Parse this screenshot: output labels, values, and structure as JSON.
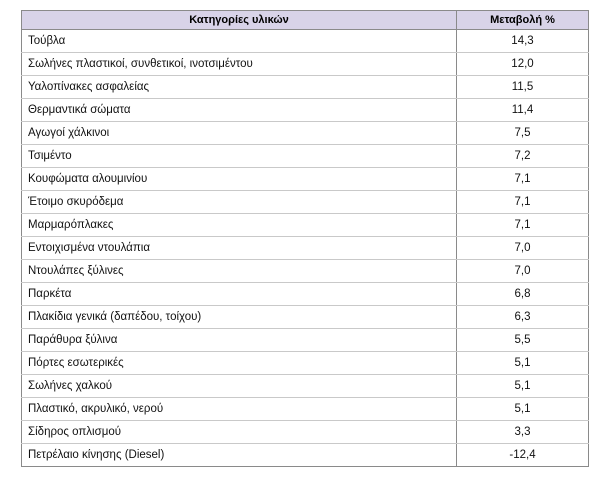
{
  "table": {
    "headers": [
      "Κατηγορίες υλικών",
      "Μεταβολή %"
    ],
    "rows": [
      [
        "Τούβλα",
        "14,3"
      ],
      [
        "Σωλήνες πλαστικοί, συνθετικοί, ινοτσιμέντου",
        "12,0"
      ],
      [
        "Υαλοπίνακες ασφαλείας",
        "11,5"
      ],
      [
        "Θερμαντικά σώματα",
        "11,4"
      ],
      [
        "Αγωγοί χάλκινοι",
        "7,5"
      ],
      [
        "Τσιμέντο",
        "7,2"
      ],
      [
        "Κουφώματα αλουμινίου",
        "7,1"
      ],
      [
        "Έτοιμο σκυρόδεμα",
        "7,1"
      ],
      [
        "Μαρμαρόπλακες",
        "7,1"
      ],
      [
        "Εντοιχισμένα ντουλάπια",
        "7,0"
      ],
      [
        "Ντουλάπες ξύλινες",
        "7,0"
      ],
      [
        "Παρκέτα",
        "6,8"
      ],
      [
        "Πλακίδια γενικά (δαπέδου, τοίχου)",
        "6,3"
      ],
      [
        "Παράθυρα ξύλινα",
        "5,5"
      ],
      [
        "Πόρτες εσωτερικές",
        "5,1"
      ],
      [
        "Σωλήνες χαλκού",
        "5,1"
      ],
      [
        "Πλαστικό, ακρυλικό, νερού",
        "5,1"
      ],
      [
        "Σίδηρος οπλισμού",
        "3,3"
      ],
      [
        "Πετρέλαιο κίνησης (Diesel)",
        "-12,4"
      ]
    ]
  },
  "colors": {
    "header_bg": "#d8d3e8",
    "border": "#8a8a8a"
  }
}
